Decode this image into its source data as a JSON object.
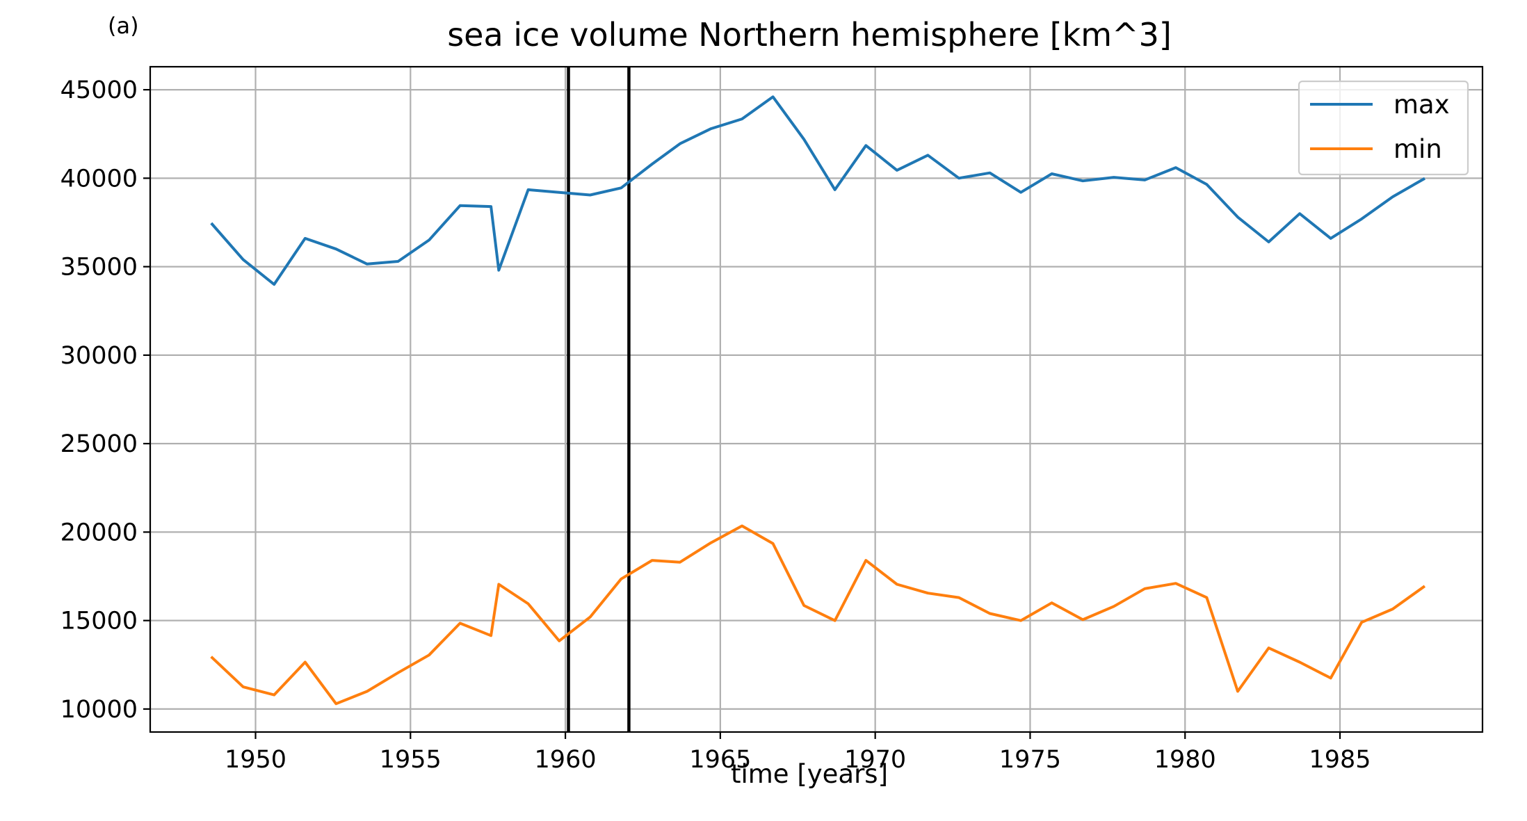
{
  "panel_label": "(a)",
  "chart_data": {
    "type": "line",
    "title": "sea ice volume Northern hemisphere [km^3]",
    "xlabel": "time [years]",
    "ylabel": "",
    "xlim": [
      1946.6,
      1989.6
    ],
    "ylim": [
      8700,
      46300
    ],
    "xticks": [
      1950,
      1955,
      1960,
      1965,
      1970,
      1975,
      1980,
      1985
    ],
    "yticks": [
      10000,
      15000,
      20000,
      25000,
      30000,
      35000,
      40000,
      45000
    ],
    "grid": true,
    "legend_position": "top-right",
    "vertical_lines": [
      1960.1,
      1962.05
    ],
    "x": [
      1948.6,
      1949.6,
      1950.6,
      1951.6,
      1952.6,
      1953.6,
      1954.6,
      1955.6,
      1956.6,
      1957.6,
      1957.85,
      1958.8,
      1959.8,
      1960.8,
      1961.8,
      1962.8,
      1963.7,
      1964.7,
      1965.7,
      1966.7,
      1967.7,
      1968.7,
      1969.7,
      1970.7,
      1971.7,
      1972.7,
      1973.7,
      1974.7,
      1975.7,
      1976.7,
      1977.7,
      1978.7,
      1979.7,
      1980.7,
      1981.7,
      1982.7,
      1983.7,
      1984.7,
      1985.7,
      1986.7,
      1987.7
    ],
    "series": [
      {
        "name": "max",
        "color": "#1f77b4",
        "values": [
          37400,
          35400,
          34000,
          36600,
          36000,
          35150,
          35300,
          36500,
          38450,
          38400,
          34800,
          39350,
          39200,
          39050,
          39450,
          40800,
          41950,
          42800,
          43350,
          44600,
          42200,
          39350,
          41850,
          40450,
          41300,
          40000,
          40300,
          39200,
          40250,
          39850,
          40050,
          39900,
          40600,
          39650,
          37800,
          36400,
          38000,
          36600,
          37700,
          38950,
          39950
        ]
      },
      {
        "name": "min",
        "color": "#ff7f0e",
        "values": [
          12900,
          11250,
          10800,
          12650,
          10300,
          11000,
          12050,
          13050,
          14850,
          14150,
          17050,
          15950,
          13850,
          15200,
          17350,
          18400,
          18300,
          19400,
          20350,
          19350,
          15850,
          15000,
          18400,
          17050,
          16550,
          16300,
          15400,
          15000,
          16000,
          15050,
          15800,
          16800,
          17100,
          16300,
          11000,
          13450,
          12650,
          11750,
          14900,
          15650,
          16900
        ]
      }
    ]
  }
}
